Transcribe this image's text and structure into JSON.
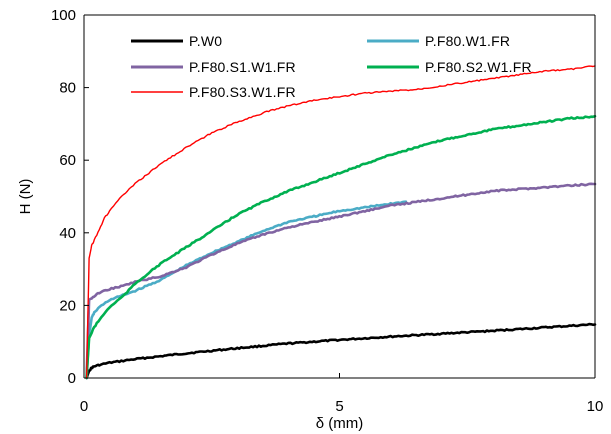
{
  "chart_data": {
    "type": "line",
    "xlabel": "δ (mm)",
    "ylabel": "H (N)",
    "xlim": [
      0,
      10
    ],
    "ylim": [
      0,
      100
    ],
    "x_ticks": [
      0,
      5,
      10
    ],
    "y_ticks": [
      0,
      20,
      40,
      60,
      80,
      100
    ],
    "grid": false,
    "legend": "top, inside plot, two columns",
    "series": [
      {
        "name": "P.W0",
        "color": "#000000",
        "x": [
          0.05,
          0.1,
          0.15,
          0.2,
          0.3,
          0.5,
          1.0,
          1.5,
          2.0,
          3.0,
          4.0,
          5.0,
          6.0,
          7.0,
          8.0,
          9.0,
          10.0
        ],
        "y": [
          0,
          2.0,
          2.8,
          3.2,
          3.6,
          4.2,
          5.2,
          6.0,
          6.8,
          8.2,
          9.5,
          10.5,
          11.4,
          12.2,
          13.0,
          13.9,
          14.8
        ]
      },
      {
        "name": "P.F80.W1.FR",
        "color": "#4bacc6",
        "x": [
          0.05,
          0.1,
          0.15,
          0.2,
          0.3,
          0.5,
          0.8,
          1.0,
          1.5,
          2.0,
          2.5,
          3.0,
          3.5,
          4.0,
          4.5,
          5.0,
          5.5,
          6.0,
          6.3
        ],
        "y": [
          0,
          12.0,
          16.5,
          18.0,
          19.5,
          21.5,
          23.0,
          24.0,
          27.0,
          31.0,
          34.5,
          37.5,
          40.5,
          43.0,
          44.5,
          46.0,
          47.0,
          48.0,
          48.5
        ]
      },
      {
        "name": "P.F80.S1.W1.FR",
        "color": "#8064a2",
        "x": [
          0.05,
          0.1,
          0.2,
          0.3,
          0.5,
          0.8,
          1.0,
          1.5,
          2.0,
          2.5,
          3.0,
          3.5,
          4.0,
          4.5,
          5.0,
          5.5,
          6.0,
          6.5,
          7.0,
          7.5,
          8.0,
          8.5,
          9.0,
          9.5,
          10.0
        ],
        "y": [
          0,
          21.5,
          22.5,
          23.5,
          24.5,
          25.5,
          26.5,
          28.0,
          30.5,
          34.0,
          37.0,
          39.5,
          41.5,
          43.0,
          44.5,
          46.0,
          47.5,
          48.5,
          49.5,
          50.5,
          51.5,
          52.0,
          52.5,
          53.0,
          53.5
        ]
      },
      {
        "name": "P.F80.S2.W1.FR",
        "color": "#00b050",
        "x": [
          0.05,
          0.1,
          0.2,
          0.3,
          0.5,
          0.8,
          1.0,
          1.5,
          2.0,
          2.5,
          3.0,
          3.5,
          4.0,
          4.5,
          5.0,
          5.5,
          6.0,
          6.5,
          7.0,
          7.5,
          8.0,
          8.5,
          9.0,
          9.5,
          10.0
        ],
        "y": [
          0,
          11.0,
          14.0,
          16.0,
          19.5,
          23.0,
          26.0,
          31.5,
          36.0,
          40.5,
          45.0,
          48.5,
          51.5,
          54.0,
          56.5,
          59.0,
          61.5,
          63.5,
          65.5,
          67.0,
          68.5,
          69.5,
          70.5,
          71.5,
          72.0
        ]
      },
      {
        "name": "P.F80.S3.W1.FR",
        "color": "#ff0000",
        "x": [
          0.05,
          0.1,
          0.15,
          0.2,
          0.3,
          0.4,
          0.5,
          0.7,
          1.0,
          1.5,
          2.0,
          2.5,
          3.0,
          3.5,
          4.0,
          4.5,
          5.0,
          5.5,
          6.0,
          6.5,
          7.0,
          7.5,
          8.0,
          8.5,
          9.0,
          9.5,
          10.0
        ],
        "y": [
          0,
          33.0,
          36.5,
          38.0,
          41.0,
          44.0,
          46.0,
          49.5,
          53.5,
          59.0,
          63.5,
          67.5,
          70.5,
          73.0,
          75.0,
          76.5,
          77.5,
          78.5,
          79.0,
          79.5,
          80.5,
          81.5,
          82.5,
          83.5,
          84.5,
          85.0,
          86.0
        ]
      }
    ]
  }
}
